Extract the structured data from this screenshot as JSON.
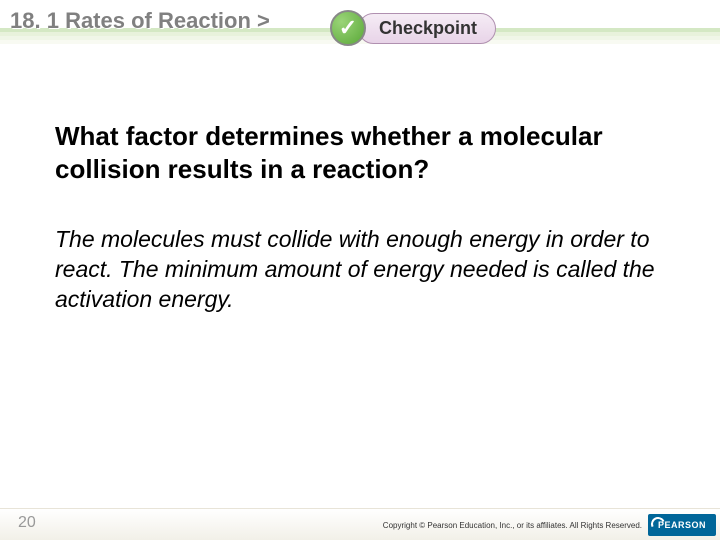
{
  "header": {
    "chapter": "18. 1",
    "title": "Rates of Reaction",
    "chevron": ">",
    "checkpoint_label": "Checkpoint"
  },
  "content": {
    "question": "What factor determines whether a molecular collision results in a reaction?",
    "answer": "The molecules must collide with enough energy in order to react. The minimum amount of energy needed is called the activation energy."
  },
  "footer": {
    "page_number": "20",
    "copyright": "Copyright © Pearson Education, Inc., or its affiliates. All Rights Reserved.",
    "logo_text": "PEARSON"
  },
  "colors": {
    "title_gray": "#808080",
    "checkpoint_green1": "#9ad478",
    "checkpoint_green2": "#5aa838",
    "checkpoint_pill1": "#f5ecf5",
    "checkpoint_pill2": "#e8d4e8",
    "pearson_blue": "#006699"
  }
}
